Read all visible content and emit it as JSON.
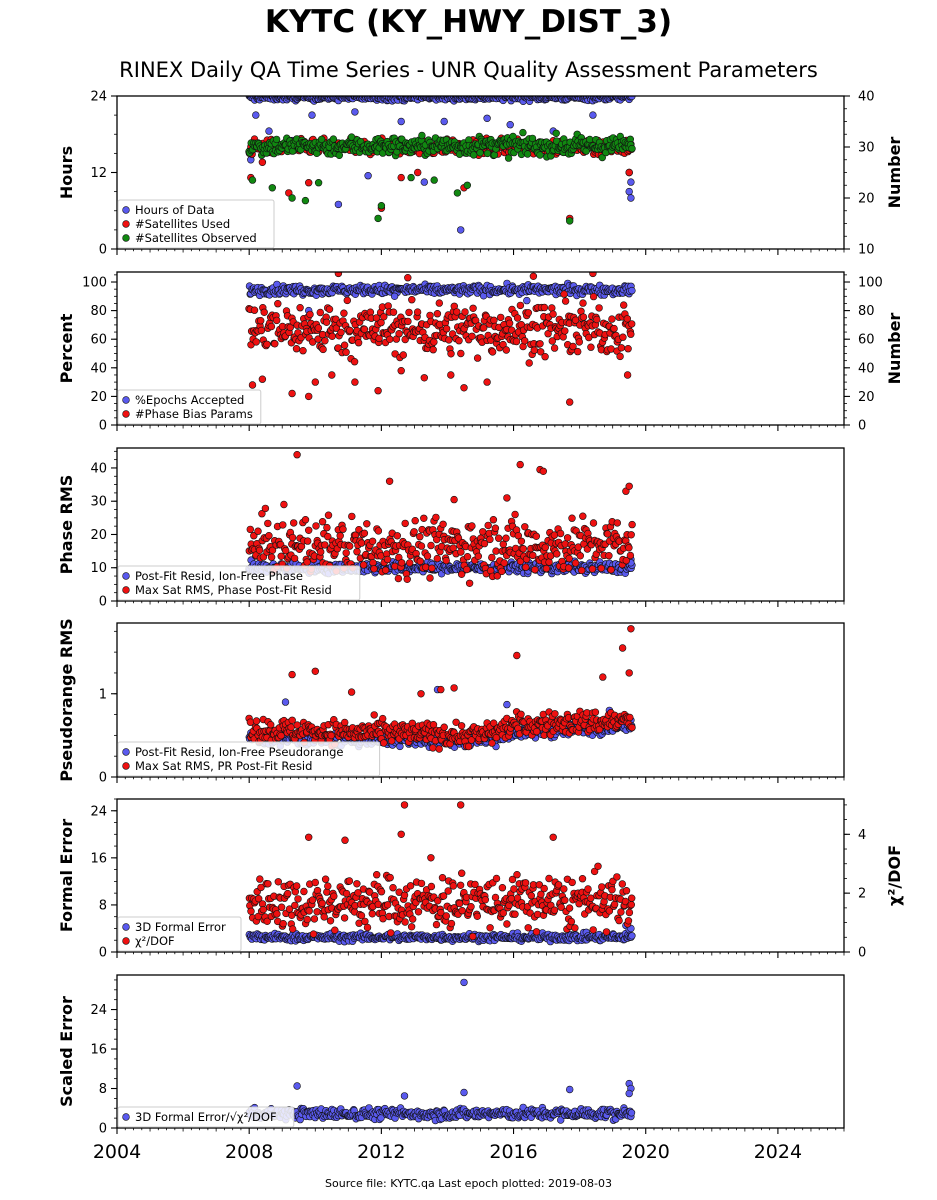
{
  "title": "KYTC (KY_HWY_DIST_3)",
  "subtitle": "RINEX Daily QA Time Series - UNR Quality Assessment Parameters",
  "footer": "Source file: KYTC.qa Last epoch plotted: 2019-08-03",
  "colors": {
    "blue": "#5a5aee",
    "red": "#ee1111",
    "green": "#118811",
    "edge": "#111111"
  },
  "chart_data": {
    "type": "scatter",
    "x_range": [
      2004.0,
      2026.0
    ],
    "x_ticks": [
      2004,
      2008,
      2012,
      2016,
      2020,
      2024
    ],
    "data_span": [
      2008.0,
      2019.58
    ],
    "panels": [
      {
        "ylabel": "Hours",
        "ylim": [
          0,
          24
        ],
        "yticks": [
          0,
          12,
          24
        ],
        "y2label": "Number",
        "y2lim": [
          10,
          40
        ],
        "y2ticks": [
          10,
          20,
          30,
          40
        ],
        "legend": "lower-left",
        "series": [
          {
            "name": "Hours of Data",
            "color": "blue",
            "axis": "left",
            "typical": {
              "center": 23.8,
              "spread": 0.25
            },
            "outliers": [
              [
                2008.05,
                14.0
              ],
              [
                2008.2,
                21.0
              ],
              [
                2008.6,
                18.5
              ],
              [
                2009.3,
                17.0
              ],
              [
                2009.9,
                21.0
              ],
              [
                2010.7,
                7.0
              ],
              [
                2011.2,
                21.5
              ],
              [
                2011.6,
                11.5
              ],
              [
                2012.6,
                20.0
              ],
              [
                2013.3,
                10.5
              ],
              [
                2013.9,
                20.0
              ],
              [
                2014.4,
                3.0
              ],
              [
                2015.2,
                20.5
              ],
              [
                2015.9,
                19.5
              ],
              [
                2017.2,
                18.5
              ],
              [
                2018.4,
                21.0
              ],
              [
                2019.5,
                9.0
              ],
              [
                2019.55,
                8.0
              ],
              [
                2019.5,
                12.0
              ],
              [
                2019.55,
                10.5
              ]
            ]
          },
          {
            "name": "#Satellites Used",
            "color": "red",
            "axis": "right",
            "typical": {
              "center": 30.0,
              "spread": 0.7
            },
            "outliers": [
              [
                2008.05,
                24.0
              ],
              [
                2008.4,
                27.0
              ],
              [
                2009.2,
                21.0
              ],
              [
                2009.8,
                23.0
              ],
              [
                2012.0,
                18.0
              ],
              [
                2012.6,
                24.0
              ],
              [
                2013.1,
                25.0
              ],
              [
                2014.5,
                22.0
              ],
              [
                2017.7,
                16.0
              ],
              [
                2019.5,
                25.0
              ]
            ]
          },
          {
            "name": "#Satellites Observed",
            "color": "green",
            "axis": "right",
            "typical": {
              "center": 30.2,
              "spread": 0.9
            },
            "outliers": [
              [
                2008.1,
                23.5
              ],
              [
                2008.7,
                22.0
              ],
              [
                2009.3,
                20.0
              ],
              [
                2009.7,
                19.5
              ],
              [
                2010.1,
                23.0
              ],
              [
                2011.9,
                16.0
              ],
              [
                2012.0,
                18.5
              ],
              [
                2012.9,
                24.0
              ],
              [
                2013.6,
                23.5
              ],
              [
                2014.3,
                21.0
              ],
              [
                2014.6,
                22.5
              ],
              [
                2017.7,
                15.5
              ]
            ]
          }
        ]
      },
      {
        "ylabel": "Percent",
        "ylim": [
          0,
          107
        ],
        "yticks": [
          0,
          20,
          40,
          60,
          80,
          100
        ],
        "y2label": "Number",
        "y2lim": [
          0,
          107
        ],
        "y2ticks": [
          0,
          20,
          40,
          60,
          80,
          100
        ],
        "legend": "lower-left",
        "series": [
          {
            "name": "%Epochs Accepted",
            "color": "blue",
            "axis": "left",
            "typical": {
              "center": 94.5,
              "spread": 1.6
            },
            "outliers": [
              [
                2009.8,
                80.0
              ],
              [
                2012.4,
                90.0
              ],
              [
                2016.4,
                87.0
              ]
            ]
          },
          {
            "name": "#Phase Bias Params",
            "color": "red",
            "axis": "right",
            "typical": {
              "center": 67.0,
              "spread": 9.0
            },
            "outliers": [
              [
                2008.1,
                28.0
              ],
              [
                2008.4,
                32.0
              ],
              [
                2009.3,
                22.0
              ],
              [
                2009.8,
                20.0
              ],
              [
                2010.0,
                30.0
              ],
              [
                2010.5,
                35.0
              ],
              [
                2011.2,
                30.0
              ],
              [
                2011.9,
                24.0
              ],
              [
                2012.6,
                38.0
              ],
              [
                2013.3,
                33.0
              ],
              [
                2014.1,
                35.0
              ],
              [
                2014.5,
                26.0
              ],
              [
                2015.2,
                30.0
              ],
              [
                2017.7,
                16.0
              ],
              [
                2019.45,
                35.0
              ],
              [
                2010.7,
                106.0
              ],
              [
                2012.8,
                103.0
              ],
              [
                2016.6,
                104.0
              ],
              [
                2018.4,
                106.0
              ]
            ]
          }
        ]
      },
      {
        "ylabel": "Phase RMS",
        "ylim": [
          0,
          46
        ],
        "yticks": [
          0,
          10,
          20,
          30,
          40
        ],
        "legend": "lower-left",
        "series": [
          {
            "name": "Post-Fit Resid, Ion-Free Phase",
            "color": "blue",
            "axis": "left",
            "typical": {
              "center": 10.0,
              "spread": 0.8
            },
            "outliers": [
              [
                2019.55,
                12.5
              ],
              [
                2019.55,
                11.5
              ]
            ]
          },
          {
            "name": "Max Sat RMS, Phase Post-Fit Resid",
            "color": "red",
            "axis": "left",
            "typical": {
              "center": 16.5,
              "spread": 4.2
            },
            "outliers": [
              [
                2009.45,
                44.0
              ],
              [
                2012.25,
                36.0
              ],
              [
                2016.2,
                41.0
              ],
              [
                2016.8,
                39.5
              ],
              [
                2016.9,
                39.0
              ],
              [
                2014.2,
                30.5
              ],
              [
                2015.8,
                31.0
              ],
              [
                2019.4,
                33.0
              ],
              [
                2019.5,
                34.5
              ]
            ]
          }
        ]
      },
      {
        "ylabel": "Pseudorange RMS",
        "ylim": [
          0,
          1.85
        ],
        "yticks": [
          0,
          1
        ],
        "legend": "lower-left",
        "series": [
          {
            "name": "Post-Fit Resid, Ion-Free Pseudorange",
            "color": "blue",
            "axis": "left",
            "trend": [
              [
                2008.0,
                0.47
              ],
              [
                2015.0,
                0.43
              ],
              [
                2016.0,
                0.53
              ],
              [
                2019.6,
                0.62
              ]
            ],
            "spread": 0.04,
            "outliers": [
              [
                2009.1,
                0.9
              ],
              [
                2013.7,
                1.05
              ],
              [
                2015.8,
                0.87
              ],
              [
                2018.9,
                0.8
              ]
            ]
          },
          {
            "name": "Max Sat RMS, PR Post-Fit Resid",
            "color": "red",
            "axis": "left",
            "trend": [
              [
                2008.0,
                0.57
              ],
              [
                2015.0,
                0.5
              ],
              [
                2016.0,
                0.62
              ],
              [
                2019.6,
                0.68
              ]
            ],
            "spread": 0.07,
            "outliers": [
              [
                2009.3,
                1.23
              ],
              [
                2010.0,
                1.27
              ],
              [
                2011.1,
                1.02
              ],
              [
                2013.2,
                1.0
              ],
              [
                2013.8,
                1.05
              ],
              [
                2014.2,
                1.07
              ],
              [
                2016.1,
                1.46
              ],
              [
                2018.7,
                1.2
              ],
              [
                2019.3,
                1.55
              ],
              [
                2019.5,
                1.25
              ],
              [
                2019.55,
                1.78
              ]
            ]
          }
        ]
      },
      {
        "ylabel": "Formal Error",
        "ylim": [
          0,
          26
        ],
        "yticks": [
          0,
          8,
          16,
          24
        ],
        "y2label": "χ²/DOF",
        "y2lim": [
          0,
          5.2
        ],
        "y2ticks": [
          0,
          2,
          4
        ],
        "legend": "lower-left",
        "series": [
          {
            "name": "3D Formal Error",
            "color": "blue",
            "axis": "left",
            "typical": {
              "center": 2.5,
              "spread": 0.3
            },
            "outliers": [
              [
                2019.4,
                4.5
              ],
              [
                2019.5,
                3.8
              ],
              [
                2019.55,
                4.0
              ]
            ]
          },
          {
            "name": "χ²/DOF",
            "color": "red",
            "axis": "right",
            "typical": {
              "center": 1.7,
              "spread": 0.45
            },
            "outliers": [
              [
                2012.7,
                5.0
              ],
              [
                2014.4,
                5.0
              ],
              [
                2009.8,
                3.9
              ],
              [
                2012.6,
                4.0
              ],
              [
                2010.9,
                3.8
              ],
              [
                2017.2,
                3.9
              ],
              [
                2013.5,
                3.2
              ]
            ]
          }
        ]
      },
      {
        "ylabel": "Scaled Error",
        "ylim": [
          0,
          31
        ],
        "yticks": [
          0,
          8,
          16,
          24
        ],
        "legend": "lower-left",
        "series": [
          {
            "name": "3D Formal Error/√χ²/DOF",
            "color": "blue",
            "axis": "left",
            "typical": {
              "center": 2.9,
              "spread": 0.55
            },
            "outliers": [
              [
                2009.45,
                8.5
              ],
              [
                2014.5,
                29.5
              ],
              [
                2017.7,
                7.8
              ],
              [
                2014.5,
                7.2
              ],
              [
                2012.7,
                6.5
              ],
              [
                2019.5,
                9.0
              ],
              [
                2019.55,
                8.0
              ],
              [
                2019.5,
                7.0
              ]
            ]
          }
        ]
      }
    ]
  }
}
